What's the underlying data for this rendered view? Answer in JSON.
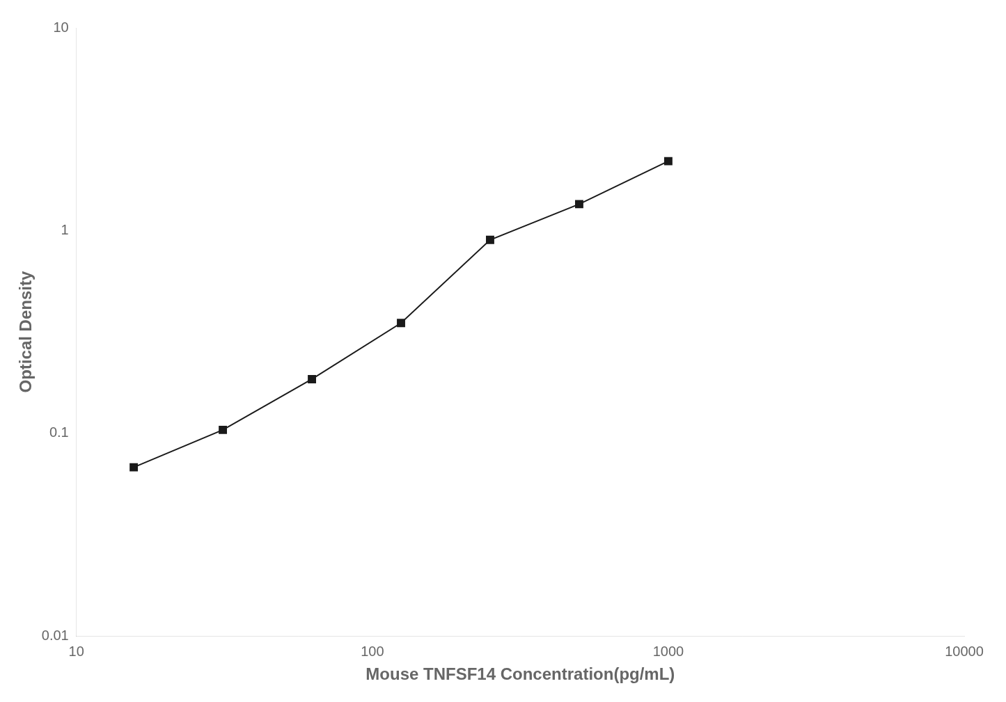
{
  "chart_data": {
    "type": "line",
    "x": [
      15.625,
      31.25,
      62.5,
      125,
      250,
      500,
      1000
    ],
    "values": [
      0.068,
      0.104,
      0.185,
      0.35,
      0.9,
      1.35,
      2.2
    ],
    "xlabel": "Mouse TNFSF14 Concentration(pg/mL)",
    "ylabel": "Optical Density",
    "xlim": [
      10,
      10000
    ],
    "ylim": [
      0.01,
      10
    ],
    "xticks": [
      10,
      100,
      1000,
      10000
    ],
    "yticks": [
      0.01,
      0.1,
      1,
      10
    ],
    "log": true,
    "grid": false,
    "color": "#1a1a1a",
    "marker": "square",
    "line_style": "solid"
  }
}
